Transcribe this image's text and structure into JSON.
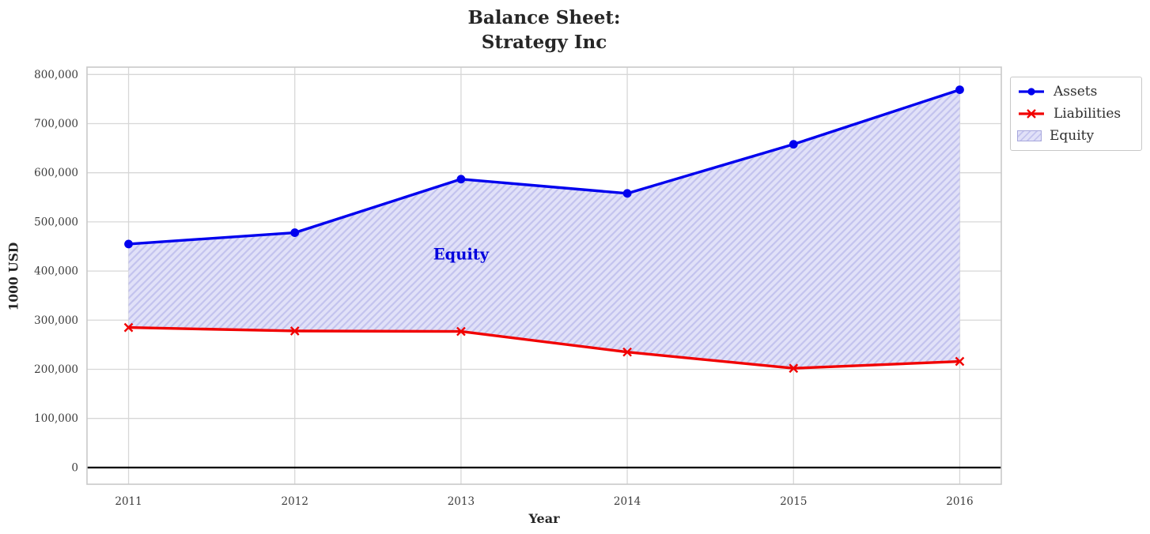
{
  "figure": {
    "title_line1": "Balance Sheet:",
    "title_line2": "Strategy Inc"
  },
  "chart_data": {
    "type": "line",
    "title": "Balance Sheet: Strategy Inc",
    "xlabel": "Year",
    "ylabel": "1000 USD",
    "categories": [
      "2011",
      "2012",
      "2013",
      "2014",
      "2015",
      "2016"
    ],
    "series": [
      {
        "name": "Assets",
        "color": "#0000ee",
        "marker": "circle",
        "values": [
          455000,
          478000,
          587000,
          558000,
          658000,
          769000
        ]
      },
      {
        "name": "Liabilities",
        "color": "#f10000",
        "marker": "x",
        "values": [
          285000,
          278000,
          277000,
          235000,
          202000,
          216000
        ]
      }
    ],
    "area": {
      "name": "Equity",
      "between": [
        "Assets",
        "Liabilities"
      ],
      "values": [
        170000,
        200000,
        310000,
        323000,
        456000,
        553000
      ],
      "fill_color": "#e1e1f8",
      "hatch_color": "#c3c3ee",
      "hatch_style": "//",
      "label_text": "Equity",
      "label_color": "#0000dd",
      "label_at": {
        "x": "2013",
        "y": 434000
      }
    },
    "yticks": [
      0,
      100000,
      200000,
      300000,
      400000,
      500000,
      600000,
      700000,
      800000
    ],
    "ytick_labels": [
      "0",
      "100,000",
      "200,000",
      "300,000",
      "400,000",
      "500,000",
      "600,000",
      "700,000",
      "800,000"
    ],
    "ylim": [
      -34000,
      815000
    ],
    "xlim": [
      -0.25,
      5.25
    ],
    "grid": true,
    "zero_line_color": "#000000",
    "legend_position": "outside-upper-right",
    "legend_entries": [
      "Assets",
      "Liabilities",
      "Equity"
    ]
  }
}
